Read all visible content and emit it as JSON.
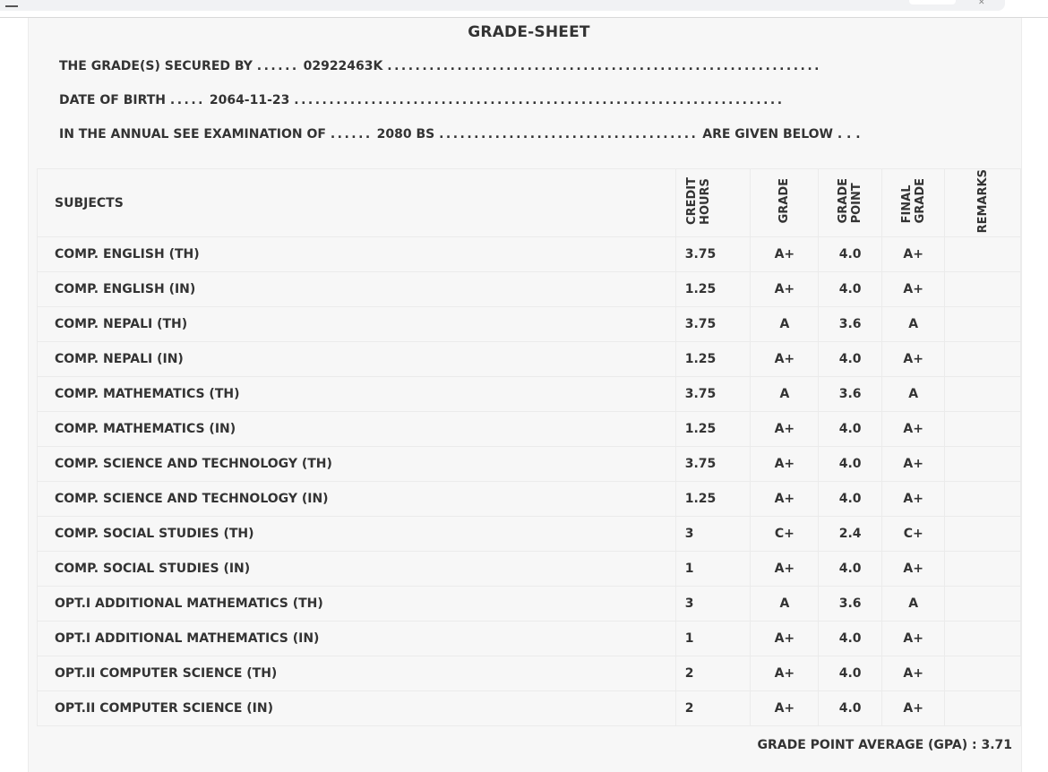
{
  "title": "GRADE-SHEET",
  "info": {
    "secured_by_label": "THE GRADE(S) SECURED BY",
    "secured_by_dots_before": "......",
    "symbol_number": "02922463K",
    "secured_by_dots_after": "..............................................................",
    "dob_label": "DATE OF BIRTH",
    "dob_dots_before": ".....",
    "dob_value": "2064-11-23",
    "dob_dots_after": "......................................................................",
    "exam_label": "IN THE ANNUAL SEE EXAMINATION OF",
    "exam_dots_before": "......",
    "exam_value": "2080 BS",
    "exam_dots_after": ".....................................",
    "exam_suffix": "ARE GIVEN BELOW . . ."
  },
  "table": {
    "headers": {
      "subjects": "SUBJECTS",
      "credit_hours": "CREDIT\nHOURS",
      "grade": "GRADE",
      "grade_point": "GRADE\nPOINT",
      "final_grade": "FINAL\nGRADE",
      "remarks": "REMARKS"
    },
    "rows": [
      {
        "subject": "COMP. ENGLISH (TH)",
        "credit": "3.75",
        "grade": "A+",
        "gp": "4.0",
        "final": "A+",
        "remarks": ""
      },
      {
        "subject": "COMP. ENGLISH (IN)",
        "credit": "1.25",
        "grade": "A+",
        "gp": "4.0",
        "final": "A+",
        "remarks": ""
      },
      {
        "subject": "COMP. NEPALI (TH)",
        "credit": "3.75",
        "grade": "A",
        "gp": "3.6",
        "final": "A",
        "remarks": ""
      },
      {
        "subject": "COMP. NEPALI (IN)",
        "credit": "1.25",
        "grade": "A+",
        "gp": "4.0",
        "final": "A+",
        "remarks": ""
      },
      {
        "subject": "COMP. MATHEMATICS (TH)",
        "credit": "3.75",
        "grade": "A",
        "gp": "3.6",
        "final": "A",
        "remarks": ""
      },
      {
        "subject": "COMP. MATHEMATICS (IN)",
        "credit": "1.25",
        "grade": "A+",
        "gp": "4.0",
        "final": "A+",
        "remarks": ""
      },
      {
        "subject": "COMP. SCIENCE AND TECHNOLOGY (TH)",
        "credit": "3.75",
        "grade": "A+",
        "gp": "4.0",
        "final": "A+",
        "remarks": ""
      },
      {
        "subject": "COMP. SCIENCE AND TECHNOLOGY (IN)",
        "credit": "1.25",
        "grade": "A+",
        "gp": "4.0",
        "final": "A+",
        "remarks": ""
      },
      {
        "subject": "COMP. SOCIAL STUDIES (TH)",
        "credit": "3",
        "grade": "C+",
        "gp": "2.4",
        "final": "C+",
        "remarks": ""
      },
      {
        "subject": "COMP. SOCIAL STUDIES (IN)",
        "credit": "1",
        "grade": "A+",
        "gp": "4.0",
        "final": "A+",
        "remarks": ""
      },
      {
        "subject": "OPT.I ADDITIONAL MATHEMATICS (TH)",
        "credit": "3",
        "grade": "A",
        "gp": "3.6",
        "final": "A",
        "remarks": ""
      },
      {
        "subject": "OPT.I ADDITIONAL MATHEMATICS (IN)",
        "credit": "1",
        "grade": "A+",
        "gp": "4.0",
        "final": "A+",
        "remarks": ""
      },
      {
        "subject": "OPT.II COMPUTER SCIENCE (TH)",
        "credit": "2",
        "grade": "A+",
        "gp": "4.0",
        "final": "A+",
        "remarks": ""
      },
      {
        "subject": "OPT.II COMPUTER SCIENCE (IN)",
        "credit": "2",
        "grade": "A+",
        "gp": "4.0",
        "final": "A+",
        "remarks": ""
      }
    ]
  },
  "gpa": {
    "label": "GRADE POINT AVERAGE (GPA) :",
    "value": "3.71"
  }
}
